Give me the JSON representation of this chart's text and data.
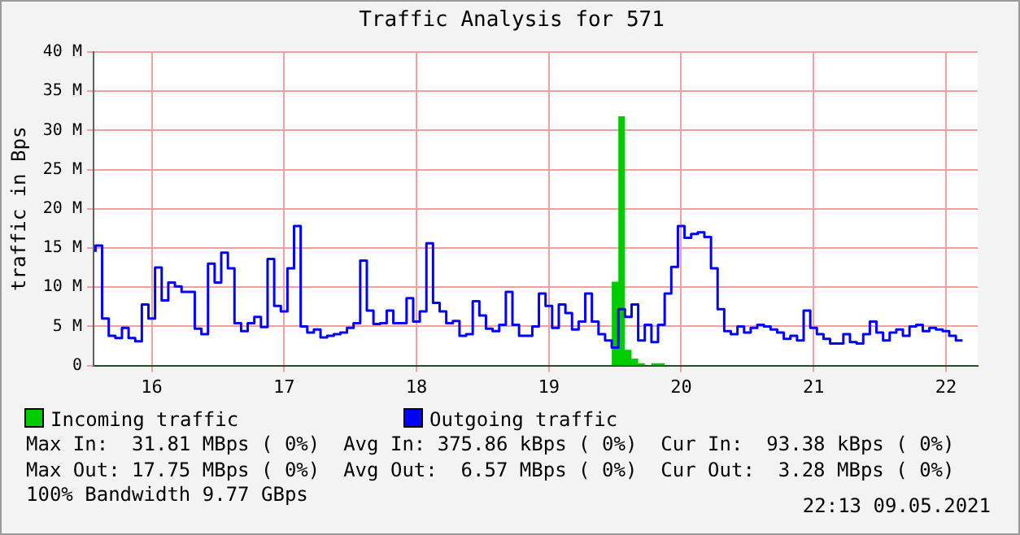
{
  "chart_data": {
    "type": "step",
    "title": "Traffic Analysis for 571",
    "ylabel": "traffic in Bps",
    "x": [
      15.575,
      15.625,
      15.675,
      15.725,
      15.775,
      15.825,
      15.875,
      15.925,
      15.975,
      16.025,
      16.075,
      16.125,
      16.175,
      16.225,
      16.275,
      16.325,
      16.375,
      16.425,
      16.475,
      16.525,
      16.575,
      16.625,
      16.675,
      16.725,
      16.775,
      16.825,
      16.875,
      16.925,
      16.975,
      17.025,
      17.075,
      17.125,
      17.175,
      17.225,
      17.275,
      17.325,
      17.375,
      17.425,
      17.475,
      17.525,
      17.575,
      17.625,
      17.675,
      17.725,
      17.775,
      17.825,
      17.875,
      17.925,
      17.975,
      18.025,
      18.075,
      18.125,
      18.175,
      18.225,
      18.275,
      18.325,
      18.375,
      18.425,
      18.475,
      18.525,
      18.575,
      18.625,
      18.675,
      18.725,
      18.775,
      18.825,
      18.875,
      18.925,
      18.975,
      19.025,
      19.075,
      19.125,
      19.175,
      19.225,
      19.275,
      19.325,
      19.375,
      19.425,
      19.475,
      19.525,
      19.575,
      19.625,
      19.675,
      19.725,
      19.775,
      19.825,
      19.875,
      19.925,
      19.975,
      20.025,
      20.075,
      20.125,
      20.175,
      20.225,
      20.275,
      20.325,
      20.375,
      20.425,
      20.475,
      20.525,
      20.575,
      20.625,
      20.675,
      20.725,
      20.775,
      20.825,
      20.875,
      20.925,
      20.975,
      21.025,
      21.075,
      21.125,
      21.175,
      21.225,
      21.275,
      21.325,
      21.375,
      21.425,
      21.475,
      21.525,
      21.575,
      21.625,
      21.675,
      21.725,
      21.775,
      21.825,
      21.875,
      21.925,
      21.975,
      22.025,
      22.075,
      22.125
    ],
    "series": [
      {
        "name": "Incoming traffic",
        "type": "area",
        "color": "#00cc00",
        "x": [
          19.475,
          19.525,
          19.575,
          19.625,
          19.675,
          19.725,
          19.775,
          19.825,
          19.875,
          19.925
        ],
        "values": [
          0,
          10.7,
          31.8,
          2,
          0.9,
          0.3,
          0,
          0.3,
          0.3,
          0
        ]
      },
      {
        "name": "Outgoing traffic",
        "type": "step",
        "color": "#0000ff",
        "values": [
          14.5,
          15.3,
          6,
          3.8,
          3.5,
          4.8,
          3.5,
          3.1,
          7.8,
          6,
          12.5,
          8.3,
          10.6,
          10.1,
          9.4,
          9.4,
          4.7,
          4,
          13,
          10.6,
          14.4,
          12.4,
          5.4,
          4.4,
          5.4,
          6.2,
          4.9,
          13.6,
          7.6,
          6.9,
          12.4,
          17.8,
          5,
          4.2,
          4.6,
          3.6,
          3.8,
          4,
          4.2,
          4.8,
          5.4,
          13.4,
          7,
          5.3,
          5.4,
          7,
          5.4,
          5.4,
          8.6,
          5.6,
          6.9,
          15.6,
          8,
          6.9,
          5.4,
          5.7,
          3.8,
          4,
          8.2,
          6.4,
          4.7,
          4.4,
          5.2,
          9.4,
          5.2,
          3.8,
          3.8,
          5,
          9.2,
          7.6,
          4.8,
          7.8,
          6.7,
          4.6,
          5.6,
          9.2,
          5.6,
          4,
          3.2,
          2.3,
          7.2,
          6.2,
          7.8,
          3.2,
          5.2,
          3,
          5.2,
          9.2,
          12.6,
          17.8,
          16.3,
          16.8,
          17,
          16.4,
          12.4,
          7.2,
          4.4,
          4,
          5,
          4.2,
          4.8,
          5.2,
          5,
          4.6,
          4.2,
          3.4,
          3.8,
          3.2,
          7,
          4.8,
          4,
          3.4,
          2.8,
          2.8,
          4,
          3,
          2.8,
          4,
          5.6,
          4.2,
          3.2,
          4.2,
          4.6,
          3.8,
          5,
          5.2,
          4.4,
          4.8,
          4.6,
          4.4,
          3.8,
          3.2
        ]
      }
    ],
    "xlim": [
      15.56,
      22.24
    ],
    "xticks": [
      16,
      17,
      18,
      19,
      20,
      21,
      22
    ],
    "ylim": [
      0,
      40
    ],
    "yticks": [
      0,
      {
        "value": 5,
        "label": "5 M"
      },
      {
        "value": 10,
        "label": "10 M"
      },
      {
        "value": 15,
        "label": "15 M"
      },
      {
        "value": 20,
        "label": "20 M"
      },
      {
        "value": 25,
        "label": "25 M"
      },
      {
        "value": 30,
        "label": "30 M"
      },
      {
        "value": 35,
        "label": "35 M"
      },
      {
        "value": 40,
        "label": "40 M"
      }
    ],
    "grid": true,
    "legend": "bottom",
    "marker": "none",
    "annotations": [
      "Max In:  31.81 MBps ( 0%)  Avg In: 375.86 kBps ( 0%)  Cur In:  93.38 kBps ( 0%)",
      "Max Out: 17.75 MBps ( 0%)  Avg Out:  6.57 MBps ( 0%)  Cur Out:  3.28 MBps ( 0%)",
      "100% Bandwidth 9.77 GBps",
      "22:13 09.05.2021"
    ]
  }
}
